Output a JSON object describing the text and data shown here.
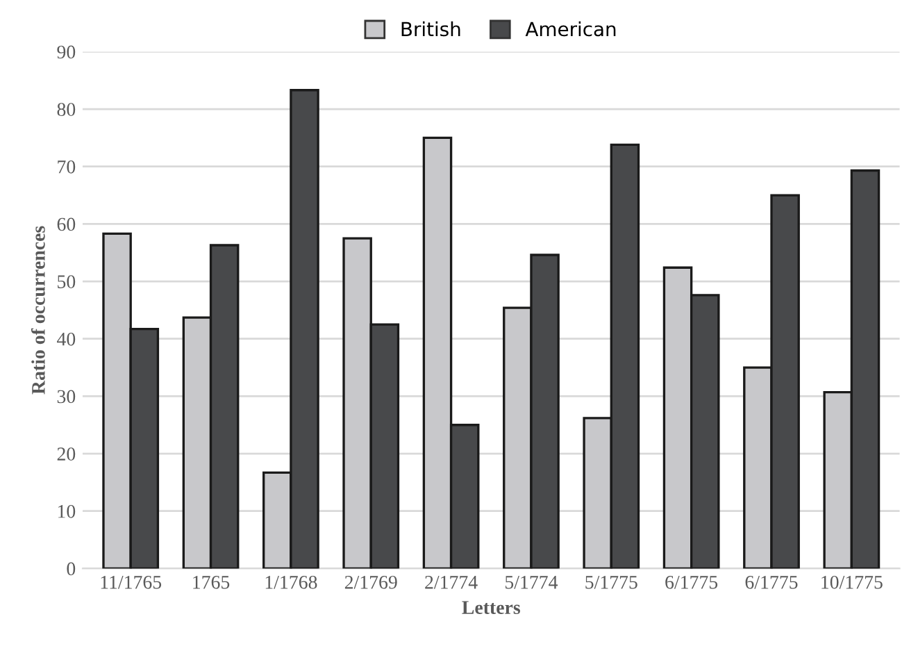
{
  "chart_data": {
    "type": "bar",
    "xlabel": "Letters",
    "ylabel": "Ratio of occurrences",
    "categories": [
      "11/1765",
      "1765",
      "1/1768",
      "2/1769",
      "2/1774",
      "5/1774",
      "5/1775",
      "6/1775",
      "6/1775",
      "10/1775"
    ],
    "series": [
      {
        "name": "British",
        "color": "#c8c8cb",
        "values": [
          58.3,
          43.7,
          16.7,
          57.5,
          75,
          45.4,
          26.2,
          52.4,
          35,
          30.7
        ]
      },
      {
        "name": "American",
        "color": "#48494b",
        "values": [
          41.7,
          56.3,
          83.3,
          42.5,
          25,
          54.6,
          73.8,
          47.6,
          65,
          69.3
        ]
      }
    ],
    "ylim": [
      0,
      90
    ],
    "yticks": [
      0,
      10,
      20,
      30,
      40,
      50,
      60,
      70,
      80,
      90
    ],
    "grid": "y",
    "legend": "top"
  }
}
